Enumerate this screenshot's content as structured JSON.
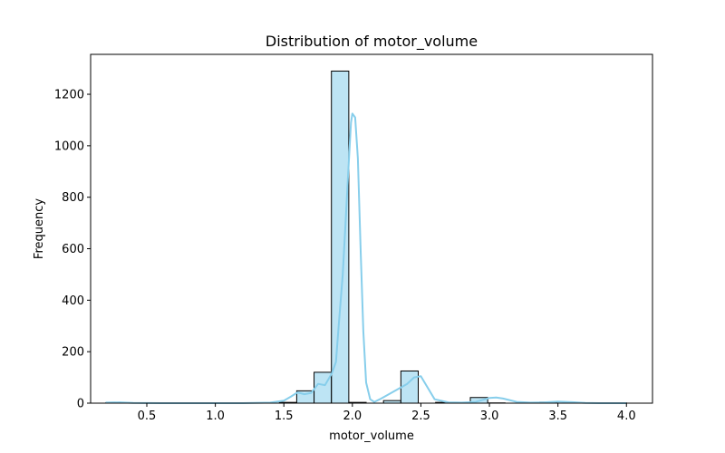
{
  "chart_data": {
    "type": "bar",
    "subtype": "histogram_with_kde",
    "title": "Distribution of motor_volume",
    "xlabel": "motor_volume",
    "ylabel": "Frequency",
    "xlim": [
      0.09,
      4.19
    ],
    "ylim": [
      0,
      1355
    ],
    "x_ticks": [
      0.5,
      1.0,
      1.5,
      2.0,
      2.5,
      3.0,
      3.5,
      4.0
    ],
    "x_tick_labels": [
      "0.5",
      "1.0",
      "1.5",
      "2.0",
      "2.5",
      "3.0",
      "3.5",
      "4.0"
    ],
    "y_ticks": [
      0,
      200,
      400,
      600,
      800,
      1000,
      1200
    ],
    "y_tick_labels": [
      "0",
      "200",
      "400",
      "600",
      "800",
      "1000",
      "1200"
    ],
    "bin_start": 0.2,
    "bin_width": 0.1267,
    "bin_counts": [
      1,
      0,
      0,
      0,
      0,
      0,
      0,
      0,
      0,
      0,
      3,
      48,
      120,
      1290,
      3,
      0,
      10,
      125,
      0,
      3,
      0,
      22,
      1,
      0,
      2,
      4,
      0,
      0,
      0,
      1
    ],
    "kde": {
      "x": [
        0.2,
        0.3,
        0.4,
        0.6,
        0.8,
        1.0,
        1.2,
        1.4,
        1.5,
        1.55,
        1.6,
        1.65,
        1.7,
        1.75,
        1.8,
        1.85,
        1.88,
        1.9,
        1.93,
        1.95,
        1.97,
        1.99,
        2.0,
        2.02,
        2.04,
        2.06,
        2.08,
        2.1,
        2.13,
        2.16,
        2.2,
        2.3,
        2.4,
        2.45,
        2.5,
        2.55,
        2.6,
        2.7,
        2.8,
        2.9,
        3.0,
        3.05,
        3.1,
        3.2,
        3.3,
        3.4,
        3.5,
        3.6,
        3.7,
        3.8,
        4.0
      ],
      "y": [
        2,
        3,
        1,
        0,
        0,
        0,
        0,
        2,
        10,
        25,
        42,
        35,
        40,
        75,
        70,
        115,
        160,
        300,
        500,
        700,
        900,
        1090,
        1125,
        1110,
        950,
        600,
        280,
        80,
        15,
        5,
        15,
        45,
        75,
        100,
        105,
        60,
        15,
        3,
        2,
        5,
        20,
        22,
        18,
        5,
        2,
        3,
        6,
        4,
        1,
        0,
        0
      ]
    },
    "colors": {
      "bar_fill": "#87ceeb",
      "bar_edge": "#000000",
      "kde_line": "#87ceeb"
    },
    "grid": false,
    "legend": "none"
  }
}
